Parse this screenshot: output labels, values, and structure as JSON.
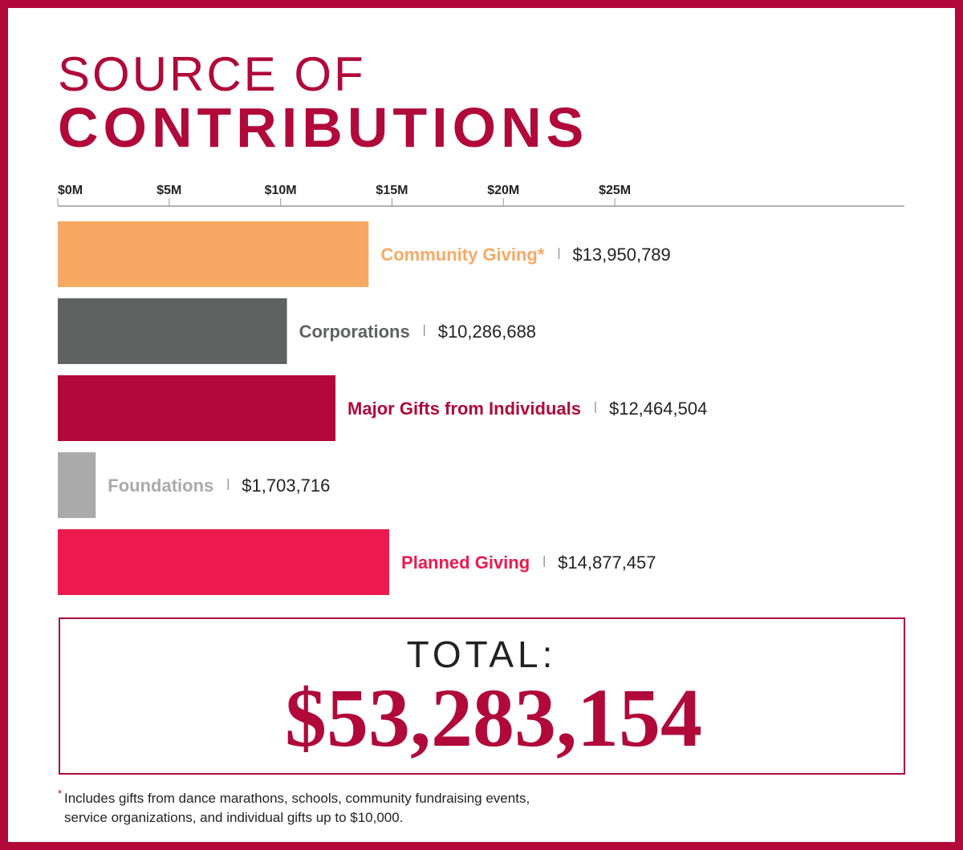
{
  "chart_data": {
    "type": "hbar",
    "title_lines": [
      "SOURCE OF",
      "CONTRIBUTIONS"
    ],
    "categories": [
      "Community Giving*",
      "Corporations",
      "Major Gifts from Individuals",
      "Foundations",
      "Planned Giving"
    ],
    "values": [
      13.950789,
      10.286688,
      12.464504,
      1.703716,
      14.877457
    ],
    "value_labels": [
      "$13,950,789",
      "$10,286,688",
      "$12,464,504",
      "$1,703,716",
      "$14,877,457"
    ],
    "colors": [
      "#f7a964",
      "#5f6260",
      "#b0093a",
      "#aaaaaa",
      "#ed1a4f"
    ],
    "xlim": [
      0,
      38
    ],
    "xticks": [
      {
        "value": 0,
        "label": "$0M"
      },
      {
        "value": 5,
        "label": "$5M"
      },
      {
        "value": 10,
        "label": "$10M"
      },
      {
        "value": 15,
        "label": "$15M"
      },
      {
        "value": 20,
        "label": "$20M"
      },
      {
        "value": 25,
        "label": "$25M"
      }
    ],
    "total_label": "TOTAL:",
    "total_value": "$53,283,154",
    "footnote_marker": "*",
    "footnote_lines": [
      "Includes gifts from dance marathons, schools, community fundraising events,",
      "service organizations, and individual gifts up to $10,000."
    ]
  }
}
